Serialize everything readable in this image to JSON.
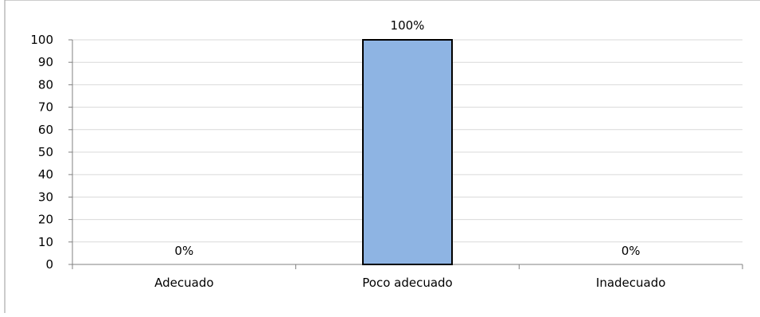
{
  "chart_data": {
    "type": "bar",
    "categories": [
      "Adecuado",
      "Poco adecuado",
      "Inadecuado"
    ],
    "values": [
      0,
      100,
      0
    ],
    "data_labels": [
      "0%",
      "100%",
      "0%"
    ],
    "title": "",
    "xlabel": "",
    "ylabel": "",
    "ylim": [
      0,
      100
    ],
    "y_ticks": [
      "0",
      "10",
      "20",
      "30",
      "40",
      "50",
      "60",
      "70",
      "80",
      "90",
      "100"
    ],
    "grid": true,
    "legend": "none",
    "bar_color": "#8EB4E3",
    "bar_edge_color": "#000000",
    "grid_color": "#D9D9D9",
    "axis_color": "#808080"
  }
}
